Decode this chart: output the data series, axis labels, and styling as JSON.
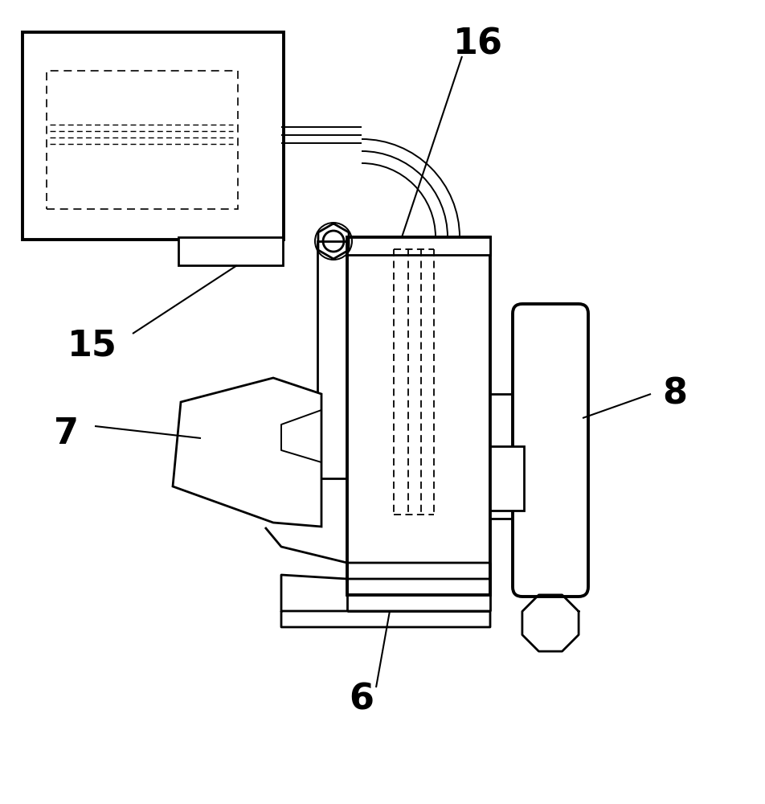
{
  "bg_color": "#ffffff",
  "line_color": "#000000",
  "label_16": "16",
  "label_15": "15",
  "label_7": "7",
  "label_6": "6",
  "label_8": "8",
  "figsize": [
    9.52,
    10.0
  ],
  "dpi": 100
}
